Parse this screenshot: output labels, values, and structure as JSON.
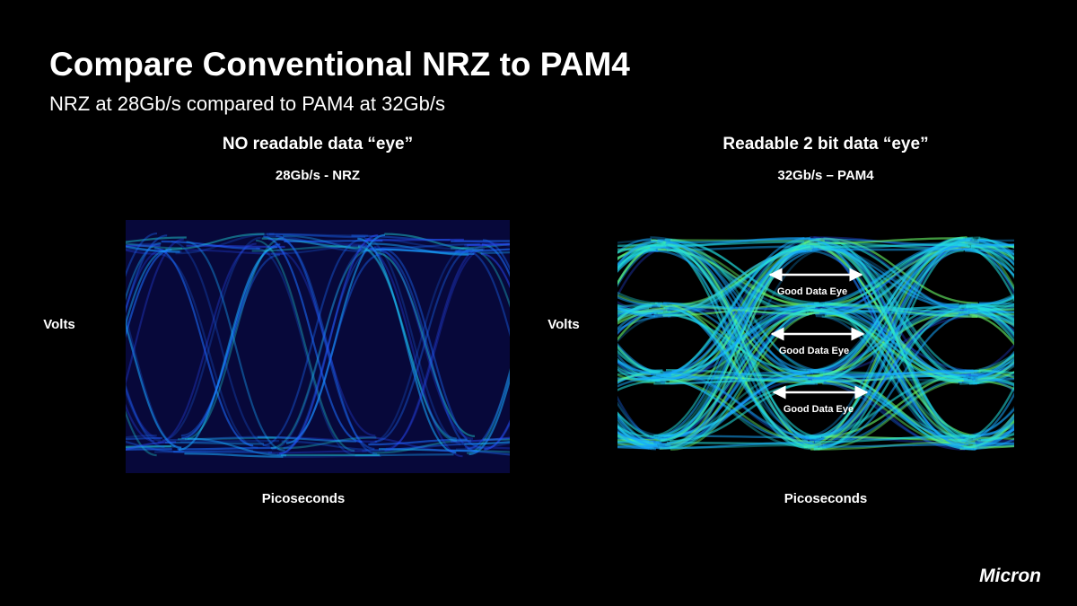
{
  "header": {
    "title": "Compare Conventional NRZ to PAM4",
    "subtitle": "NRZ at 28Gb/s compared to PAM4 at 32Gb/s"
  },
  "panels": [
    {
      "heading": "NO readable data “eye”",
      "subheading": "28Gb/s - NRZ",
      "y_label": "Volts",
      "x_label": "Picoseconds"
    },
    {
      "heading": "Readable 2 bit data “eye”",
      "subheading": "32Gb/s – PAM4",
      "y_label": "Volts",
      "x_label": "Picoseconds",
      "eye_labels": [
        "Good Data Eye",
        "Good Data Eye",
        "Good Data Eye"
      ]
    }
  ],
  "logo": "Micron"
}
